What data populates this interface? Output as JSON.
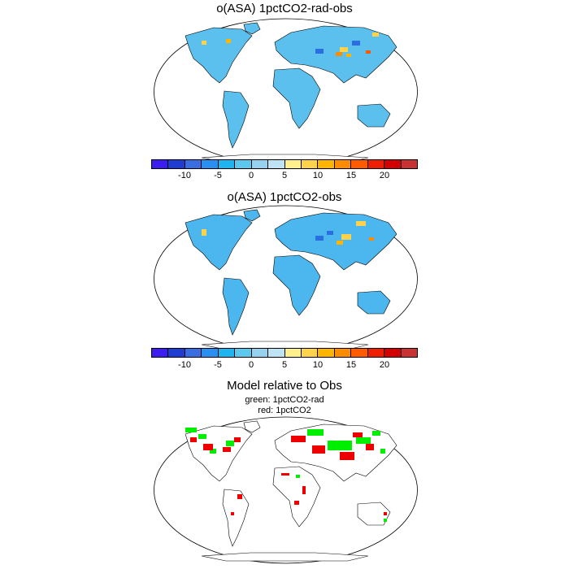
{
  "panels": [
    {
      "title": "o(ASA) 1pctCO2-rad-obs"
    },
    {
      "title": "o(ASA) 1pctCO2-obs"
    },
    {
      "title": "Model relative to Obs",
      "legend": [
        "green: 1pctCO2-rad",
        "red: 1pctCO2"
      ]
    }
  ],
  "colorbar": {
    "colors": [
      "#3c1ef0",
      "#1e3cd2",
      "#3a6ee0",
      "#2a8ff0",
      "#1eb4f0",
      "#5bc8ee",
      "#96d2ee",
      "#bfe3f2",
      "#fff08c",
      "#ffd24b",
      "#ffb400",
      "#ff8c00",
      "#ff5a00",
      "#f01e00",
      "#d20000",
      "#c83232"
    ],
    "tick_labels_1": [
      "-10",
      "-5",
      "0",
      "5",
      "10",
      "15",
      "20"
    ],
    "tick_labels_2": [
      "-10",
      "-5",
      "0",
      "5",
      "10",
      "15",
      "20"
    ]
  },
  "map_colors": {
    "ocean": "#ffffff",
    "land_fill": "#5cc0ee",
    "land_fill_2": "#4cb6ee",
    "hot": "#ffd24b",
    "cold": "#2a6fe0",
    "green": "#00ee00",
    "red": "#ee0000"
  }
}
